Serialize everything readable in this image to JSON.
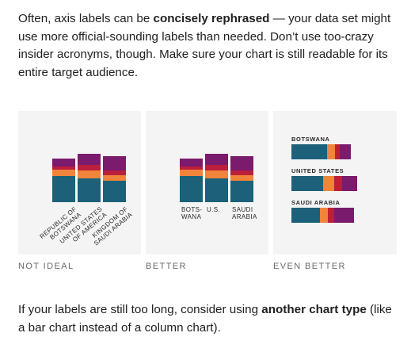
{
  "intro": {
    "part1": "Often, axis labels can be ",
    "bold": "concisely rephrased",
    "part2": " — your data set might use more official-sounding labels than needed. Don’t use too-crazy insider acronyms, though. Make sure your chart is still readable for its entire target audience."
  },
  "outro": {
    "part1": "If your labels are still too long, consider using ",
    "bold": "another chart type",
    "part2": " (like a bar chart instead of a column chart)."
  },
  "panels": [
    {
      "caption": "NOT IDEAL"
    },
    {
      "caption": "BETTER"
    },
    {
      "caption": "EVEN BETTER"
    }
  ],
  "colors": {
    "teal": "#1c6179",
    "orange": "#f0843a",
    "red": "#bb1f3c",
    "purple": "#7a1b6e"
  },
  "chart_data": [
    {
      "type": "bar",
      "stacked": true,
      "orientation": "vertical",
      "categories": [
        "REPUBLIC OF BOTSWANA",
        "UNITED STATES OF AMERICA",
        "KINGDOM OF SAUDI ARABIA"
      ],
      "series": [
        {
          "color": "teal",
          "values": [
            45,
            40,
            36
          ]
        },
        {
          "color": "orange",
          "values": [
            10,
            14,
            10
          ]
        },
        {
          "color": "red",
          "values": [
            6,
            10,
            8
          ]
        },
        {
          "color": "purple",
          "values": [
            14,
            19,
            25
          ]
        }
      ]
    },
    {
      "type": "bar",
      "stacked": true,
      "orientation": "vertical",
      "categories": [
        "BOTS-\nWANA",
        "U.S.",
        "SAUDI\nARABIA"
      ],
      "series": [
        {
          "color": "teal",
          "values": [
            45,
            40,
            36
          ]
        },
        {
          "color": "orange",
          "values": [
            10,
            14,
            10
          ]
        },
        {
          "color": "red",
          "values": [
            6,
            10,
            8
          ]
        },
        {
          "color": "purple",
          "values": [
            14,
            19,
            25
          ]
        }
      ]
    },
    {
      "type": "bar",
      "stacked": true,
      "orientation": "horizontal",
      "categories": [
        "BOTSWANA",
        "UNITED STATES",
        "SAUDI ARABIA"
      ],
      "series": [
        {
          "color": "teal",
          "values": [
            45,
            40,
            36
          ]
        },
        {
          "color": "orange",
          "values": [
            10,
            14,
            10
          ]
        },
        {
          "color": "red",
          "values": [
            6,
            10,
            8
          ]
        },
        {
          "color": "purple",
          "values": [
            14,
            19,
            25
          ]
        }
      ]
    }
  ]
}
